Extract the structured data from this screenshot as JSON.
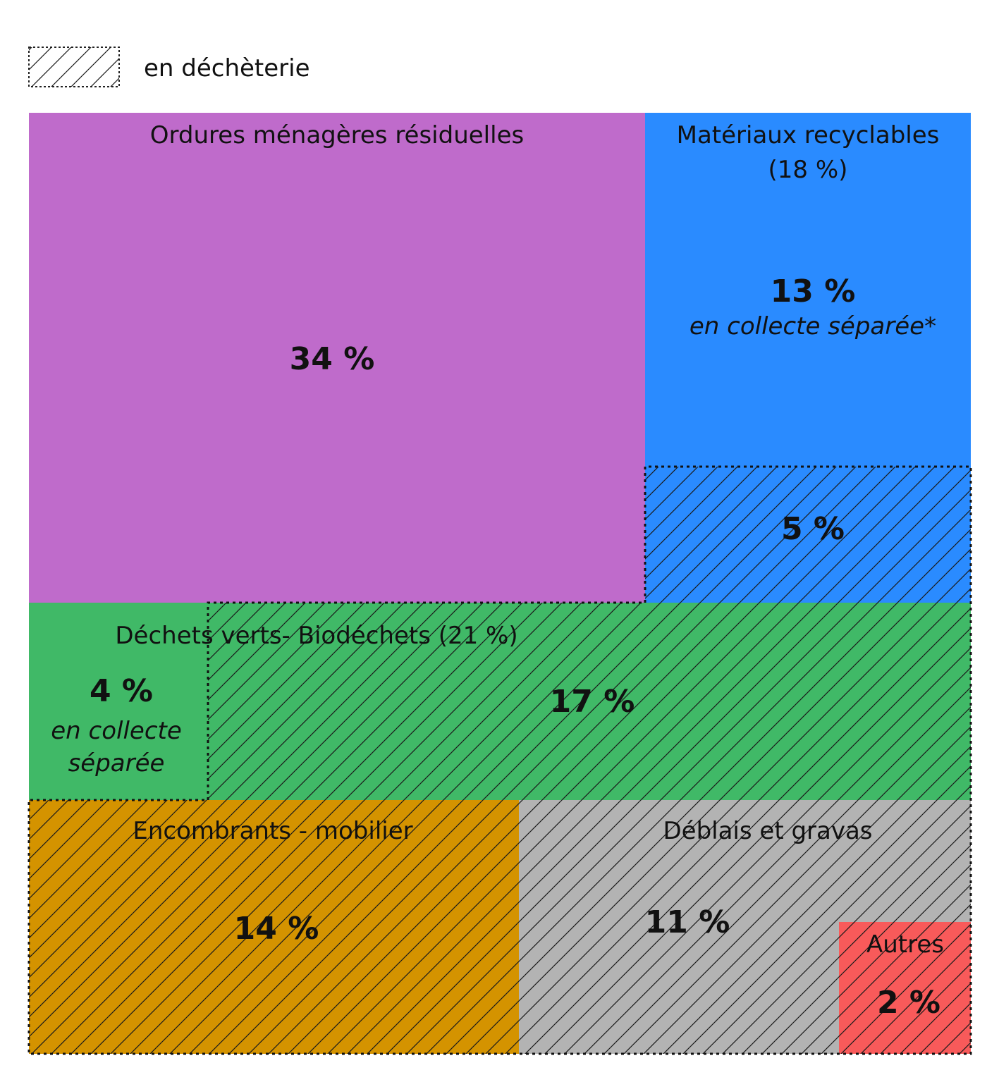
{
  "chart_data": {
    "type": "treemap",
    "legend": {
      "label": "en déchèterie",
      "pattern": "hatched",
      "placement": "top-left"
    },
    "colors": {
      "ordures": "#bf6bcb",
      "recyclables": "#2a8bff",
      "verts": "#40b967",
      "encombrants": "#d49300",
      "deblais": "#b3b3b3",
      "autres": "#f85a5a"
    },
    "categories": [
      {
        "key": "ordures",
        "label": "Ordures ménagères résiduelles",
        "total": "",
        "parts": [
          {
            "value": 34,
            "value_label": "34 %",
            "note": "",
            "dechetterie": false
          }
        ]
      },
      {
        "key": "recyclables",
        "label": "Matériaux recyclables",
        "total": "(18 %)",
        "parts": [
          {
            "value": 13,
            "value_label": "13 %",
            "note": "en collecte séparée*",
            "dechetterie": false
          },
          {
            "value": 5,
            "value_label": "5 %",
            "note": "",
            "dechetterie": true
          }
        ]
      },
      {
        "key": "verts",
        "label": "Déchets verts- Biodéchets (21 %)",
        "total": "",
        "parts": [
          {
            "value": 4,
            "value_label": "4 %",
            "note_lines": [
              "en collecte",
              "séparée"
            ],
            "dechetterie": false
          },
          {
            "value": 17,
            "value_label": "17 %",
            "note": "",
            "dechetterie": true
          }
        ]
      },
      {
        "key": "encombrants",
        "label": "Encombrants - mobilier",
        "total": "",
        "parts": [
          {
            "value": 14,
            "value_label": "14 %",
            "note": "",
            "dechetterie": true
          }
        ]
      },
      {
        "key": "deblais",
        "label": "Déblais et gravas",
        "total": "",
        "parts": [
          {
            "value": 11,
            "value_label": "11 %",
            "note": "",
            "dechetterie": true
          }
        ]
      },
      {
        "key": "autres",
        "label": "Autres",
        "total": "",
        "parts": [
          {
            "value": 2,
            "value_label": "2 %",
            "note": "",
            "dechetterie": true
          }
        ]
      }
    ]
  }
}
